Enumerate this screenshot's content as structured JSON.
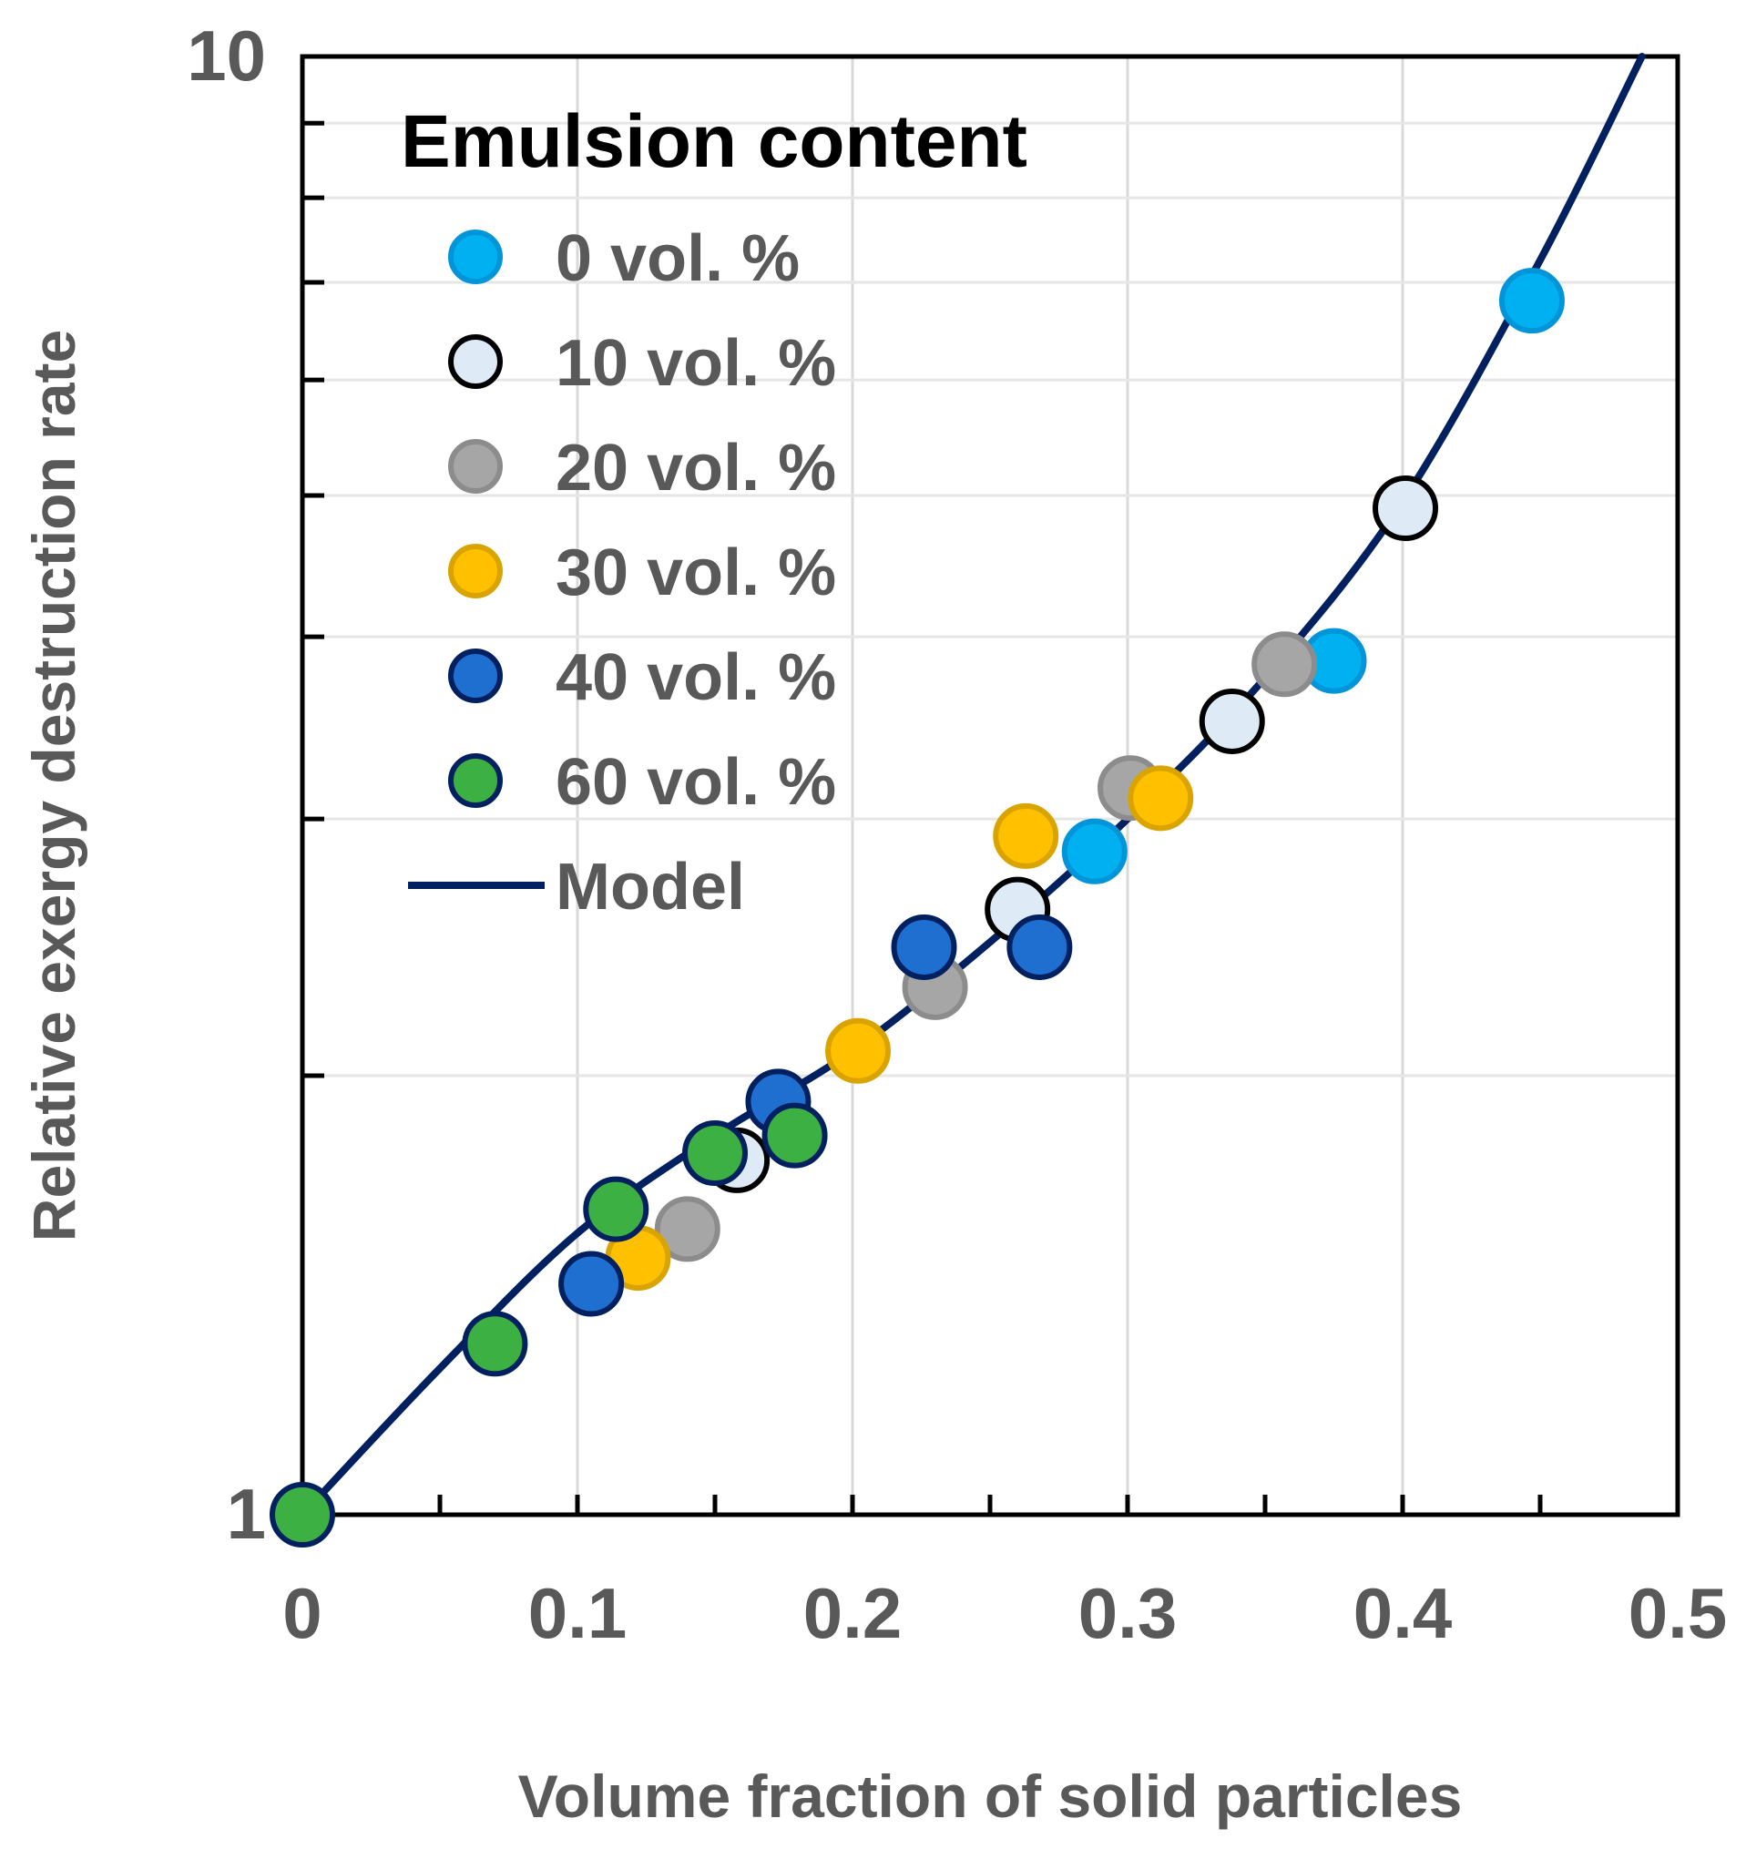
{
  "chart_data": {
    "type": "scatter",
    "title": "",
    "xlabel": "Volume fraction of solid particles",
    "ylabel": "Relative exergy destruction rate",
    "xlim": [
      0,
      0.5
    ],
    "ylim": [
      1,
      10
    ],
    "yscale": "log",
    "x_ticks": [
      0,
      0.1,
      0.2,
      0.3,
      0.4,
      0.5
    ],
    "x_tick_labels": [
      "0",
      "0.1",
      "0.2",
      "0.3",
      "0.4",
      "0.5"
    ],
    "y_tick_labels": [
      "1",
      "10"
    ],
    "grid": true,
    "legend": {
      "title": "Emulsion content",
      "position": "top-left"
    },
    "series": [
      {
        "name": "0 vol. %",
        "fill": "#00b0f0",
        "stroke": "#0095d9",
        "points": [
          {
            "x": 0.288,
            "y": 2.85
          },
          {
            "x": 0.375,
            "y": 3.85
          },
          {
            "x": 0.447,
            "y": 6.8
          }
        ]
      },
      {
        "name": "10 vol. %",
        "fill": "#deebf7",
        "stroke": "#000000",
        "points": [
          {
            "x": 0.158,
            "y": 1.75
          },
          {
            "x": 0.26,
            "y": 2.6
          },
          {
            "x": 0.338,
            "y": 3.5
          },
          {
            "x": 0.401,
            "y": 4.9
          }
        ]
      },
      {
        "name": "20 vol. %",
        "fill": "#a6a6a6",
        "stroke": "#8c8c8c",
        "points": [
          {
            "x": 0.14,
            "y": 1.57
          },
          {
            "x": 0.23,
            "y": 2.3
          },
          {
            "x": 0.301,
            "y": 3.15
          },
          {
            "x": 0.357,
            "y": 3.83
          }
        ]
      },
      {
        "name": "30 vol. %",
        "fill": "#ffc000",
        "stroke": "#d9a300",
        "points": [
          {
            "x": 0.122,
            "y": 1.5
          },
          {
            "x": 0.202,
            "y": 2.08
          },
          {
            "x": 0.263,
            "y": 2.92
          },
          {
            "x": 0.312,
            "y": 3.1
          }
        ]
      },
      {
        "name": "40 vol. %",
        "fill": "#1f6fd1",
        "stroke": "#002060",
        "points": [
          {
            "x": 0.105,
            "y": 1.44
          },
          {
            "x": 0.173,
            "y": 1.92
          },
          {
            "x": 0.226,
            "y": 2.45
          },
          {
            "x": 0.268,
            "y": 2.45
          }
        ]
      },
      {
        "name": "60 vol. %",
        "fill": "#3cb043",
        "stroke": "#002060",
        "points": [
          {
            "x": 0.0,
            "y": 1.0
          },
          {
            "x": 0.07,
            "y": 1.31
          },
          {
            "x": 0.114,
            "y": 1.62
          },
          {
            "x": 0.15,
            "y": 1.77
          },
          {
            "x": 0.179,
            "y": 1.82
          }
        ]
      }
    ],
    "model": {
      "name": "Model",
      "color": "#002060",
      "points": [
        {
          "x": 0.0,
          "y": 1.0
        },
        {
          "x": 0.05,
          "y": 1.26
        },
        {
          "x": 0.1,
          "y": 1.56
        },
        {
          "x": 0.15,
          "y": 1.82
        },
        {
          "x": 0.2,
          "y": 2.08
        },
        {
          "x": 0.25,
          "y": 2.47
        },
        {
          "x": 0.3,
          "y": 3.0
        },
        {
          "x": 0.35,
          "y": 3.75
        },
        {
          "x": 0.4,
          "y": 4.95
        },
        {
          "x": 0.45,
          "y": 7.25
        },
        {
          "x": 0.487,
          "y": 10.0
        }
      ]
    }
  }
}
